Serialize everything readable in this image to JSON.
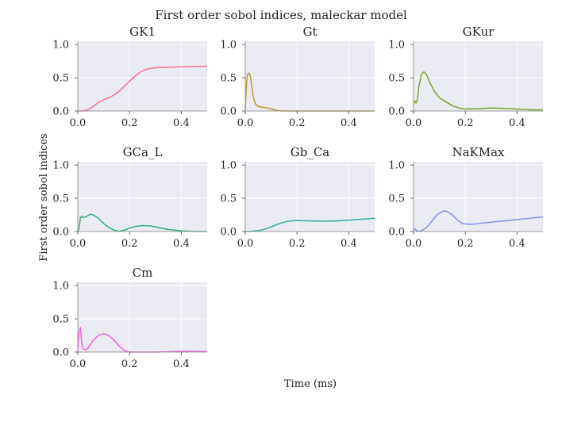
{
  "figure": {
    "suptitle": "First order sobol indices, maleckar model",
    "ylabel": "First order sobol indices",
    "xlabel": "Time (ms)"
  },
  "chart_data": [
    {
      "type": "line",
      "title": "GK1",
      "color": "#f77189",
      "xlim": [
        0,
        0.5
      ],
      "ylim": [
        0,
        1.05
      ],
      "xticks": [
        "0.0",
        "0.2",
        "0.4"
      ],
      "yticks": [
        "0.0",
        "0.5",
        "1.0"
      ],
      "x": [
        0,
        0.02,
        0.04,
        0.06,
        0.08,
        0.1,
        0.12,
        0.14,
        0.16,
        0.18,
        0.2,
        0.22,
        0.24,
        0.26,
        0.28,
        0.3,
        0.32,
        0.35,
        0.4,
        0.45,
        0.5
      ],
      "y": [
        0.0,
        0.0,
        0.02,
        0.07,
        0.13,
        0.17,
        0.2,
        0.24,
        0.3,
        0.37,
        0.45,
        0.52,
        0.58,
        0.62,
        0.64,
        0.65,
        0.655,
        0.66,
        0.665,
        0.67,
        0.675
      ]
    },
    {
      "type": "line",
      "title": "Gt",
      "color": "#bb9832",
      "xlim": [
        0,
        0.5
      ],
      "ylim": [
        0,
        1.05
      ],
      "xticks": [
        "0.0",
        "0.2",
        "0.4"
      ],
      "yticks": [
        "0.0",
        "0.5",
        "1.0"
      ],
      "x": [
        0,
        0.003,
        0.006,
        0.01,
        0.015,
        0.02,
        0.025,
        0.03,
        0.04,
        0.05,
        0.06,
        0.08,
        0.1,
        0.12,
        0.14,
        0.2,
        0.3,
        0.4,
        0.5
      ],
      "y": [
        0.0,
        0.3,
        0.48,
        0.56,
        0.57,
        0.52,
        0.38,
        0.22,
        0.1,
        0.07,
        0.06,
        0.05,
        0.03,
        0.01,
        0.0,
        0.0,
        0.0,
        0.0,
        0.0
      ]
    },
    {
      "type": "line",
      "title": "GKur",
      "color": "#7aa832",
      "xlim": [
        0,
        0.5
      ],
      "ylim": [
        0,
        1.05
      ],
      "xticks": [
        "0.0",
        "0.2",
        "0.4"
      ],
      "yticks": [
        "0.0",
        "0.5",
        "1.0"
      ],
      "x": [
        0,
        0.005,
        0.01,
        0.015,
        0.02,
        0.03,
        0.04,
        0.05,
        0.06,
        0.08,
        0.1,
        0.12,
        0.15,
        0.18,
        0.2,
        0.25,
        0.3,
        0.35,
        0.4,
        0.45,
        0.5
      ],
      "y": [
        0.1,
        0.15,
        0.12,
        0.18,
        0.35,
        0.55,
        0.59,
        0.55,
        0.45,
        0.3,
        0.2,
        0.15,
        0.08,
        0.04,
        0.03,
        0.035,
        0.045,
        0.04,
        0.03,
        0.02,
        0.015
      ]
    },
    {
      "type": "line",
      "title": "GCa_L",
      "color": "#33b07a",
      "xlim": [
        0,
        0.5
      ],
      "ylim": [
        0,
        1.05
      ],
      "xticks": [
        "0.0",
        "0.2",
        "0.4"
      ],
      "yticks": [
        "0.0",
        "0.5",
        "1.0"
      ],
      "x": [
        0,
        0.005,
        0.01,
        0.015,
        0.02,
        0.03,
        0.04,
        0.05,
        0.06,
        0.08,
        0.1,
        0.12,
        0.14,
        0.16,
        0.18,
        0.2,
        0.22,
        0.25,
        0.28,
        0.3,
        0.35,
        0.4,
        0.45,
        0.5
      ],
      "y": [
        0.0,
        0.05,
        0.2,
        0.23,
        0.21,
        0.22,
        0.24,
        0.26,
        0.25,
        0.2,
        0.12,
        0.06,
        0.02,
        0.005,
        0.02,
        0.05,
        0.075,
        0.09,
        0.085,
        0.07,
        0.03,
        0.01,
        0.0,
        0.0
      ]
    },
    {
      "type": "line",
      "title": "Gb_Ca",
      "color": "#36ada4",
      "xlim": [
        0,
        0.5
      ],
      "ylim": [
        0,
        1.05
      ],
      "xticks": [
        "0.0",
        "0.2",
        "0.4"
      ],
      "yticks": [
        "0.0",
        "0.5",
        "1.0"
      ],
      "x": [
        0,
        0.02,
        0.04,
        0.06,
        0.08,
        0.1,
        0.12,
        0.14,
        0.16,
        0.18,
        0.2,
        0.25,
        0.3,
        0.35,
        0.4,
        0.45,
        0.5
      ],
      "y": [
        0.0,
        0.0,
        0.01,
        0.02,
        0.04,
        0.07,
        0.1,
        0.13,
        0.15,
        0.16,
        0.165,
        0.16,
        0.155,
        0.16,
        0.17,
        0.185,
        0.2
      ]
    },
    {
      "type": "line",
      "title": "NaKMax",
      "color": "#7e93ed",
      "xlim": [
        0,
        0.5
      ],
      "ylim": [
        0,
        1.05
      ],
      "xticks": [
        "0.0",
        "0.2",
        "0.4"
      ],
      "yticks": [
        "0.0",
        "0.5",
        "1.0"
      ],
      "x": [
        0,
        0.005,
        0.01,
        0.02,
        0.03,
        0.05,
        0.07,
        0.09,
        0.11,
        0.12,
        0.13,
        0.15,
        0.17,
        0.19,
        0.21,
        0.23,
        0.25,
        0.3,
        0.35,
        0.4,
        0.45,
        0.5
      ],
      "y": [
        0.02,
        0.04,
        0.02,
        0.0,
        0.01,
        0.06,
        0.15,
        0.25,
        0.3,
        0.31,
        0.3,
        0.25,
        0.17,
        0.12,
        0.11,
        0.11,
        0.12,
        0.14,
        0.16,
        0.18,
        0.2,
        0.22
      ]
    },
    {
      "type": "line",
      "title": "Cm",
      "color": "#f461dd",
      "xlim": [
        0,
        0.5
      ],
      "ylim": [
        0,
        1.05
      ],
      "xticks": [
        "0.0",
        "0.2",
        "0.4"
      ],
      "yticks": [
        "0.0",
        "0.5",
        "1.0"
      ],
      "x": [
        0,
        0.005,
        0.01,
        0.015,
        0.02,
        0.03,
        0.04,
        0.05,
        0.06,
        0.08,
        0.1,
        0.12,
        0.14,
        0.16,
        0.18,
        0.2,
        0.25,
        0.3,
        0.35,
        0.4,
        0.45,
        0.5
      ],
      "y": [
        0.0,
        0.3,
        0.37,
        0.15,
        0.05,
        0.03,
        0.06,
        0.12,
        0.18,
        0.25,
        0.28,
        0.25,
        0.18,
        0.09,
        0.02,
        0.0,
        0.0,
        0.0,
        0.005,
        0.01,
        0.01,
        0.005
      ]
    }
  ]
}
